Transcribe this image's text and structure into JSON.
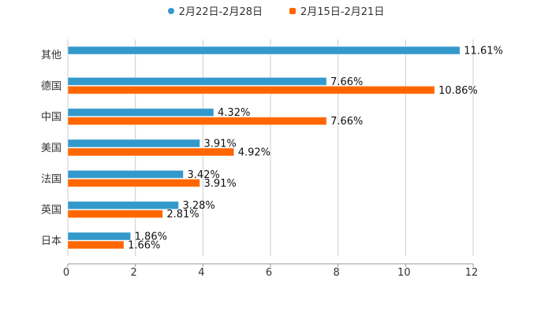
{
  "chart_data": {
    "type": "bar",
    "orientation": "horizontal",
    "categories": [
      "其他",
      "德国",
      "中国",
      "美国",
      "法国",
      "英国",
      "日本"
    ],
    "series": [
      {
        "name": "2月22日-2月28日",
        "color": "#3399cc",
        "marker": "circle",
        "values": [
          11.61,
          7.66,
          4.32,
          3.91,
          3.42,
          3.28,
          1.86
        ]
      },
      {
        "name": "2月15日-2月21日",
        "color": "#ff6600",
        "marker": "square",
        "values": [
          null,
          10.86,
          7.66,
          4.92,
          3.91,
          2.81,
          1.66
        ]
      }
    ],
    "data_label_suffix": "%",
    "xlim": [
      0,
      12
    ],
    "xticks": [
      "0",
      "2",
      "4",
      "6",
      "8",
      "10",
      "12"
    ],
    "grid": true,
    "legend_position": "top-center",
    "title": "",
    "xlabel": "",
    "ylabel": ""
  }
}
